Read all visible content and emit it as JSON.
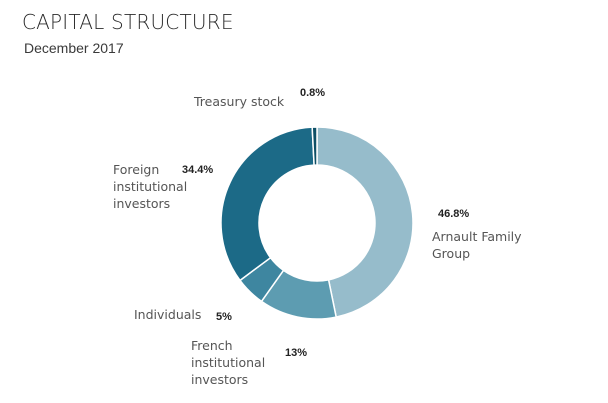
{
  "header": {
    "title": "CAPITAL STRUCTURE",
    "subtitle": "December 2017"
  },
  "chart_data": {
    "type": "pie",
    "donut": true,
    "start_angle_deg": 0,
    "categories": [
      "Arnault Family Group",
      "French institutional investors",
      "Individuals",
      "Foreign institutional investors",
      "Treasury stock"
    ],
    "values": [
      46.8,
      13,
      5,
      34.4,
      0.8
    ],
    "value_labels": [
      "46.8%",
      "13%",
      "5%",
      "34.4%",
      "0.8%"
    ],
    "label_texts": [
      "Arnault Family\nGroup",
      "French\ninstitutional\ninvestors",
      "Individuals",
      "Foreign\ninstitutional\ninvestors",
      "Treasury stock"
    ],
    "colors": [
      "#96bccb",
      "#5d9cb1",
      "#3e86a0",
      "#1c6a87",
      "#0e4f66"
    ]
  }
}
